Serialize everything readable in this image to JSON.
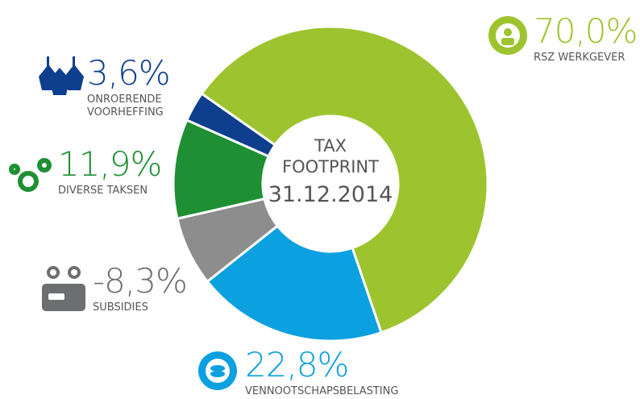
{
  "chart_data": {
    "type": "donut",
    "center_lines": [
      "TAX",
      "FOOTPRINT",
      "31.12.2014"
    ],
    "segments": [
      {
        "name": "RSZ WERKGEVER",
        "value": 70.0,
        "value_label": "70,0%",
        "color": "#9dc42f"
      },
      {
        "name": "VENNOOTSCHAPSBELASTING",
        "value": 22.8,
        "value_label": "22,8%",
        "color": "#0ba0e0"
      },
      {
        "name": "SUBSIDIES",
        "value": -8.3,
        "value_label": "-8,3%",
        "color": "#8c8d8c"
      },
      {
        "name": "DIVERSE TAKSEN",
        "value": 11.9,
        "value_label": "11,9%",
        "color": "#1f8f33"
      },
      {
        "name": "ONROERENDE VOORHEFFING",
        "value": 3.6,
        "value_label": "3,6%",
        "color": "#0d3f8e"
      }
    ]
  }
}
